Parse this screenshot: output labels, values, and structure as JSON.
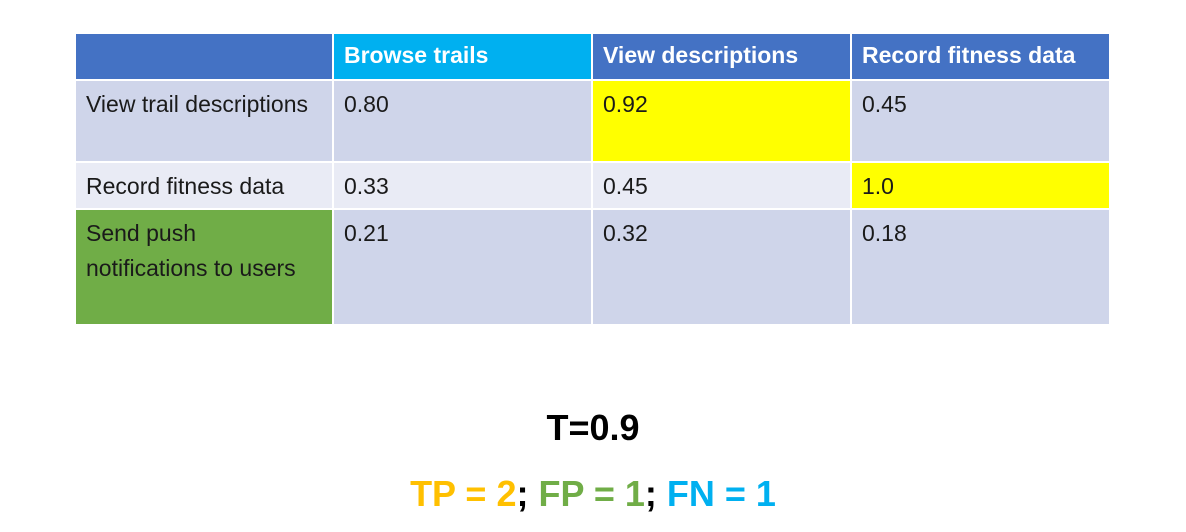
{
  "table": {
    "headers": [
      "",
      "Browse trails",
      "View descriptions",
      "Record fitness data"
    ],
    "rows": [
      {
        "label": "View trail descriptions",
        "values": [
          "0.80",
          "0.92",
          "0.45"
        ]
      },
      {
        "label": "Record fitness data",
        "values": [
          "0.33",
          "0.45",
          "1.0"
        ]
      },
      {
        "label": "Send push notifications to users",
        "values": [
          "0.21",
          "0.32",
          "0.18"
        ]
      }
    ],
    "colors": {
      "header_blue": "#4472c4",
      "header_cyan": "#00b0f0",
      "row_dark": "#cfd5ea",
      "row_light": "#e9ebf5",
      "highlight_yellow": "#ffff00",
      "highlight_green": "#70ad47"
    }
  },
  "threshold": {
    "text": "T=0.9"
  },
  "metrics": {
    "tp": "TP = 2",
    "fp": "FP = 1",
    "fn": "FN = 1",
    "separator": "; ",
    "colors": {
      "tp": "#ffc000",
      "fp": "#70ad47",
      "fn": "#00b0f0"
    }
  }
}
